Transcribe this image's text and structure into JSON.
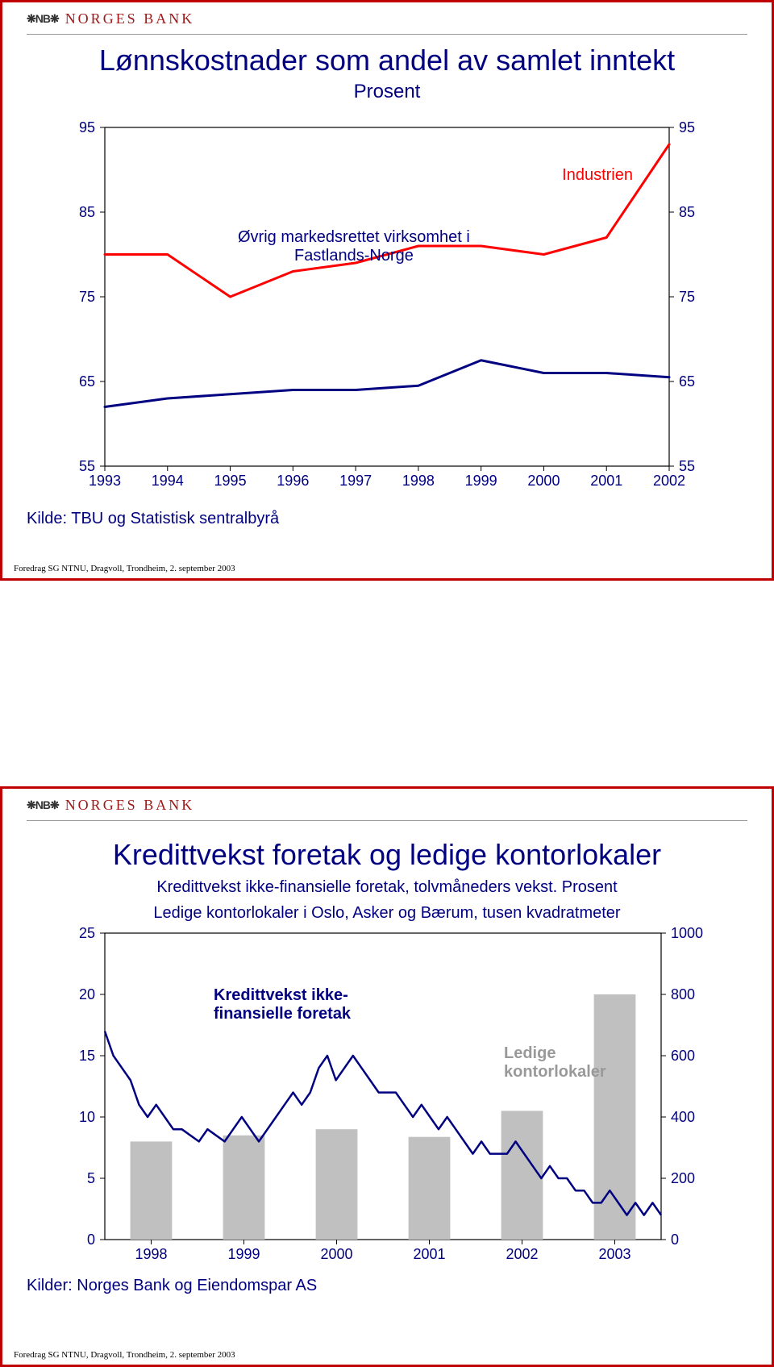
{
  "bank": {
    "logo_text": "❋NB❋",
    "name": "NORGES BANK",
    "name_color": "#a01818"
  },
  "slide1": {
    "title": "Lønnskostnader som andel av samlet inntekt",
    "subtitle": "Prosent",
    "chart": {
      "type": "line",
      "x_categories": [
        "1993",
        "1994",
        "1995",
        "1996",
        "1997",
        "1998",
        "1999",
        "2000",
        "2001",
        "2002"
      ],
      "ylim": [
        55,
        95
      ],
      "ytick_step": 10,
      "yticks_left": [
        "95",
        "85",
        "75",
        "65",
        "55"
      ],
      "yticks_right": [
        "95",
        "85",
        "75",
        "65",
        "55"
      ],
      "background_color": "#ffffff",
      "axis_color": "#000000",
      "label_fontsize": 18,
      "series": [
        {
          "name": "Industrien",
          "legend": "Industrien",
          "color": "#ff0000",
          "line_width": 3,
          "values": [
            80,
            80,
            75,
            78,
            79,
            81,
            81,
            80,
            82,
            93
          ]
        },
        {
          "name": "Øvrig markedsrettet virksomhet i Fastlands-Norge",
          "legend": "Øvrig markedsrettet virksomhet i\nFastlands-Norge",
          "color": "#000080",
          "line_width": 3,
          "values": [
            62,
            63,
            63.5,
            64,
            64,
            64.5,
            67.5,
            66,
            66,
            65.5
          ]
        }
      ]
    },
    "source": "Kilde: TBU og Statistisk sentralbyrå",
    "footer": "Foredrag SG NTNU, Dragvoll, Trondheim, 2. september 2003"
  },
  "slide2": {
    "title": "Kredittvekst foretak og ledige kontorlokaler",
    "desc_line1": "Kredittvekst ikke-finansielle foretak, tolvmåneders vekst. Prosent",
    "desc_line2": "Ledige kontorlokaler i Oslo, Asker og Bærum, tusen kvadratmeter",
    "chart": {
      "type": "combo",
      "x_categories": [
        "1998",
        "1999",
        "2000",
        "2001",
        "2002",
        "2003"
      ],
      "ylim_left": [
        0,
        25
      ],
      "ytick_step_left": 5,
      "yticks_left": [
        "25",
        "20",
        "15",
        "10",
        "5",
        "0"
      ],
      "ylim_right": [
        0,
        1000
      ],
      "ytick_step_right": 200,
      "yticks_right": [
        "1000",
        "800",
        "600",
        "400",
        "200",
        "0"
      ],
      "background_color": "#ffffff",
      "axis_color": "#000000",
      "label_fontsize": 18,
      "bars": {
        "name": "Ledige kontorlokaler",
        "legend": "Ledige\nkontorlokaler",
        "color": "#c0c0c0",
        "values": [
          320,
          340,
          360,
          335,
          420,
          800
        ],
        "bar_width": 0.45
      },
      "line": {
        "name": "Kredittvekst ikke-finansielle foretak",
        "legend": "Kredittvekst ikke-\nfinansielle foretak",
        "color": "#000080",
        "line_width": 2.5,
        "values": [
          17,
          15,
          14,
          13,
          11,
          10,
          11,
          10,
          9,
          9,
          8.5,
          8,
          9,
          8.5,
          8,
          9,
          10,
          9,
          8,
          9,
          10,
          11,
          12,
          11,
          12,
          14,
          15,
          13,
          14,
          15,
          14,
          13,
          12,
          12,
          12,
          11,
          10,
          11,
          10,
          9,
          10,
          9,
          8,
          7,
          8,
          7,
          7,
          7,
          8,
          7,
          6,
          5,
          6,
          5,
          5,
          4,
          4,
          3,
          3,
          4,
          3,
          2,
          3,
          2,
          3,
          2
        ]
      }
    },
    "source": "Kilder: Norges Bank og Eiendomspar AS",
    "footer": "Foredrag SG NTNU, Dragvoll, Trondheim, 2. september 2003"
  }
}
